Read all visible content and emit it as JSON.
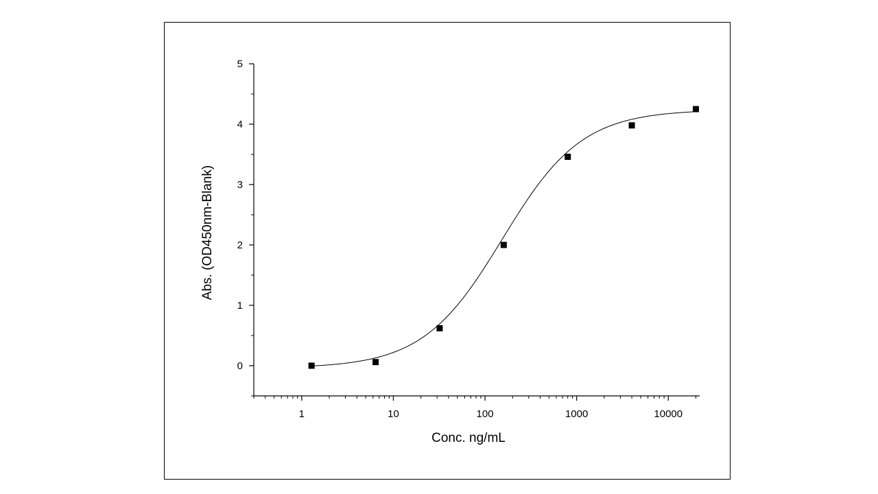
{
  "chart_data": {
    "type": "scatter",
    "xlabel": "Conc. ng/mL",
    "ylabel": "Abs. (OD450nm-Blank)",
    "x_scale": "log",
    "xlim": [
      0.3,
      22000
    ],
    "ylim": [
      -0.5,
      5
    ],
    "x_ticks": [
      1,
      10,
      100,
      1000,
      10000
    ],
    "x_tick_labels": [
      "1",
      "10",
      "100",
      "1000",
      "10000"
    ],
    "y_ticks": [
      0,
      1,
      2,
      3,
      4,
      5
    ],
    "y_tick_labels": [
      "0",
      "1",
      "2",
      "3",
      "4",
      "5"
    ],
    "grid": false,
    "legend": "none",
    "series": [
      {
        "marker": "square",
        "x": [
          1.28,
          6.4,
          32,
          160,
          800,
          4000,
          20000
        ],
        "y": [
          0.0,
          0.06,
          0.62,
          2.0,
          3.46,
          3.98,
          4.25
        ]
      }
    ],
    "fit_curve": {
      "model": "4PL",
      "bottom": -0.04,
      "top": 4.24,
      "ec50": 155,
      "hill": 1.0
    },
    "colors": {
      "marker": "#000000",
      "line": "#000000",
      "axis": "#000000"
    }
  }
}
